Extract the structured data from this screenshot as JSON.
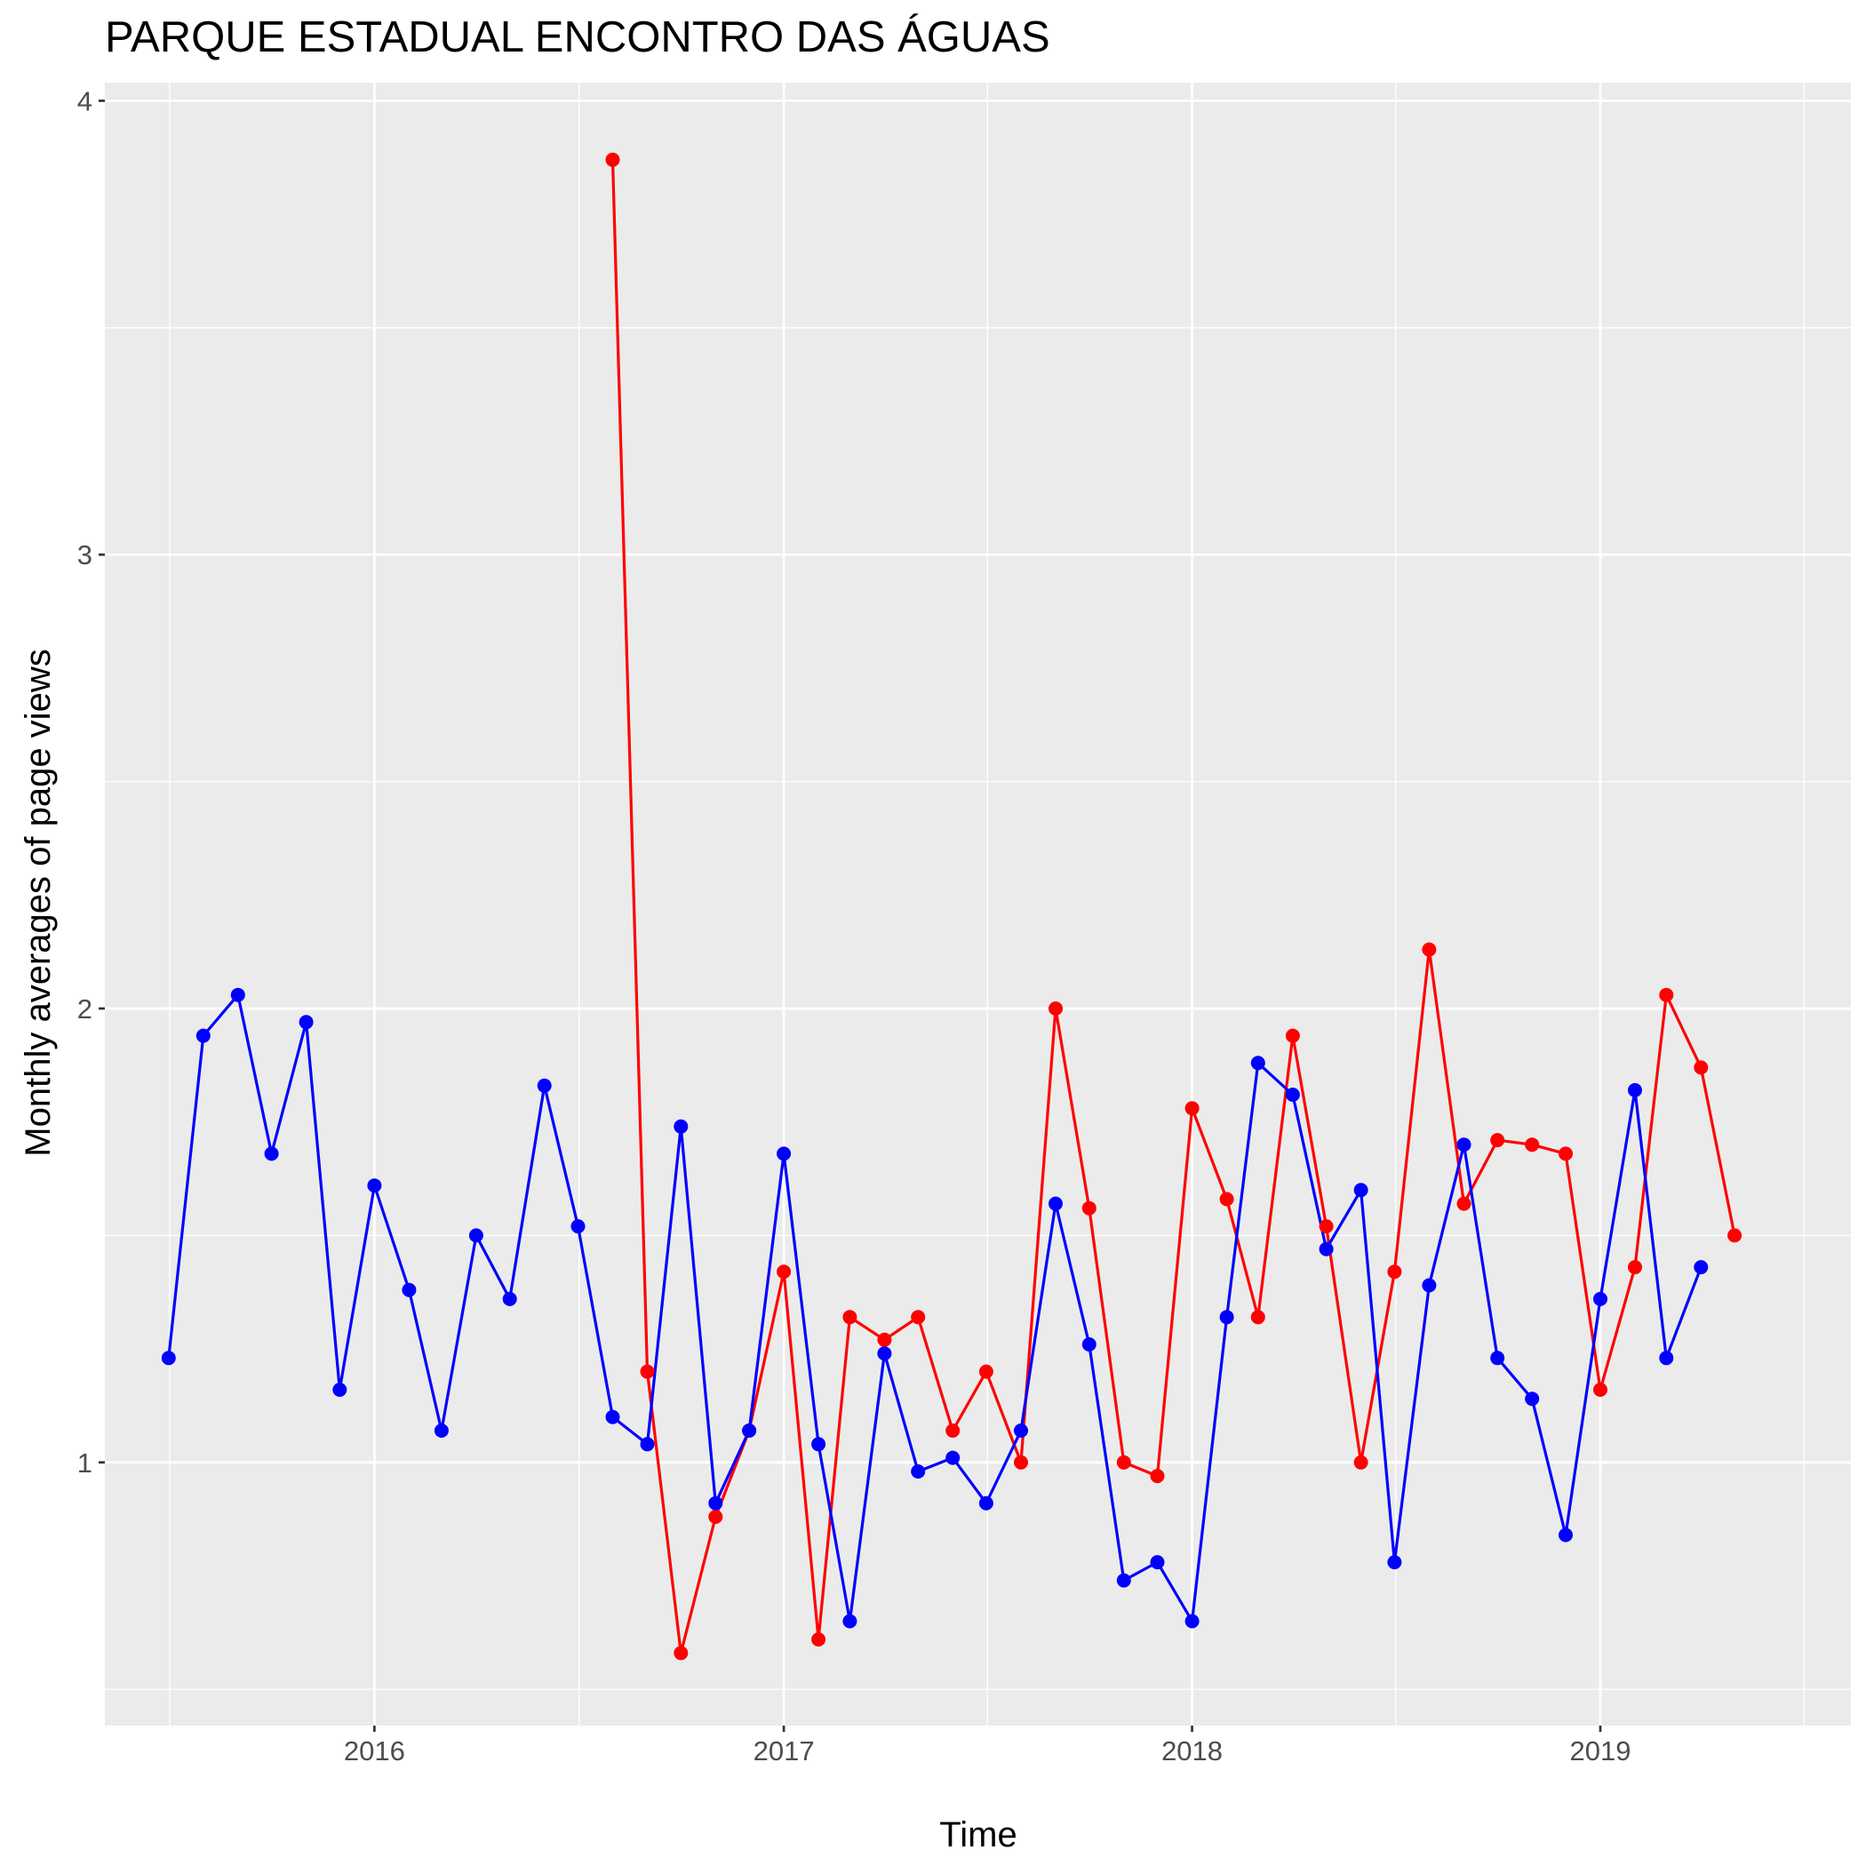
{
  "chart_data": {
    "type": "line",
    "title": "PARQUE ESTADUAL ENCONTRO DAS ÁGUAS",
    "xlabel": "Time",
    "ylabel": "Monthly averages of page views",
    "x_ticks": [
      "2016",
      "2017",
      "2018",
      "2019"
    ],
    "y_ticks": [
      "1",
      "2",
      "3",
      "4"
    ],
    "xlim": [
      "2015-05-05",
      "2019-08-13"
    ],
    "ylim": [
      0.42,
      4.04
    ],
    "grid": true,
    "legend": "none",
    "colors": {
      "panel": "#ebebeb",
      "grid": "#ffffff",
      "red": "#ff0000",
      "blue": "#0000ff"
    },
    "series": [
      {
        "color": "#0000ff",
        "x": [
          "2015-07-01",
          "2015-08-01",
          "2015-09-01",
          "2015-10-01",
          "2015-11-01",
          "2015-12-01",
          "2016-01-01",
          "2016-02-01",
          "2016-03-01",
          "2016-04-01",
          "2016-05-01",
          "2016-06-01",
          "2016-07-01",
          "2016-08-01",
          "2016-09-01",
          "2016-10-01",
          "2016-11-01",
          "2016-12-01",
          "2017-01-01",
          "2017-02-01",
          "2017-03-01",
          "2017-04-01",
          "2017-05-01",
          "2017-06-01",
          "2017-07-01",
          "2017-08-01",
          "2017-09-01",
          "2017-10-01",
          "2017-11-01",
          "2017-12-01",
          "2018-01-01",
          "2018-02-01",
          "2018-03-01",
          "2018-04-01",
          "2018-05-01",
          "2018-06-01",
          "2018-07-01",
          "2018-08-01",
          "2018-09-01",
          "2018-10-01",
          "2018-11-01",
          "2018-12-01",
          "2019-01-01",
          "2019-02-01",
          "2019-03-01",
          "2019-04-01"
        ],
        "values": [
          1.23,
          1.94,
          2.03,
          1.68,
          1.97,
          1.16,
          1.61,
          1.38,
          1.07,
          1.5,
          1.36,
          1.83,
          1.52,
          1.1,
          1.04,
          1.74,
          0.91,
          1.07,
          1.68,
          1.04,
          0.65,
          1.24,
          0.98,
          1.01,
          0.91,
          1.07,
          1.57,
          1.26,
          0.74,
          0.78,
          0.65,
          1.32,
          1.88,
          1.81,
          1.47,
          1.6,
          0.78,
          1.39,
          1.7,
          1.23,
          1.14,
          0.84,
          1.36,
          1.82,
          1.23,
          1.43
        ]
      },
      {
        "color": "#ff0000",
        "x": [
          "2016-08-01",
          "2016-09-01",
          "2016-10-01",
          "2016-11-01",
          "2016-12-01",
          "2017-01-01",
          "2017-02-01",
          "2017-03-01",
          "2017-04-01",
          "2017-05-01",
          "2017-06-01",
          "2017-07-01",
          "2017-08-01",
          "2017-09-01",
          "2017-10-01",
          "2017-11-01",
          "2017-12-01",
          "2018-01-01",
          "2018-02-01",
          "2018-03-01",
          "2018-04-01",
          "2018-05-01",
          "2018-06-01",
          "2018-07-01",
          "2018-08-01",
          "2018-09-01",
          "2018-10-01",
          "2018-11-01",
          "2018-12-01",
          "2019-01-01",
          "2019-02-01",
          "2019-03-01",
          "2019-04-01",
          "2019-05-01"
        ],
        "values": [
          3.87,
          1.2,
          0.58,
          0.88,
          1.07,
          1.42,
          0.61,
          1.32,
          1.27,
          1.32,
          1.07,
          1.2,
          1.0,
          2.0,
          1.56,
          1.0,
          0.97,
          1.78,
          1.58,
          1.32,
          1.94,
          1.52,
          1.0,
          1.42,
          2.13,
          1.57,
          1.71,
          1.7,
          1.68,
          1.16,
          1.43,
          2.03,
          1.87,
          1.5
        ]
      }
    ]
  }
}
